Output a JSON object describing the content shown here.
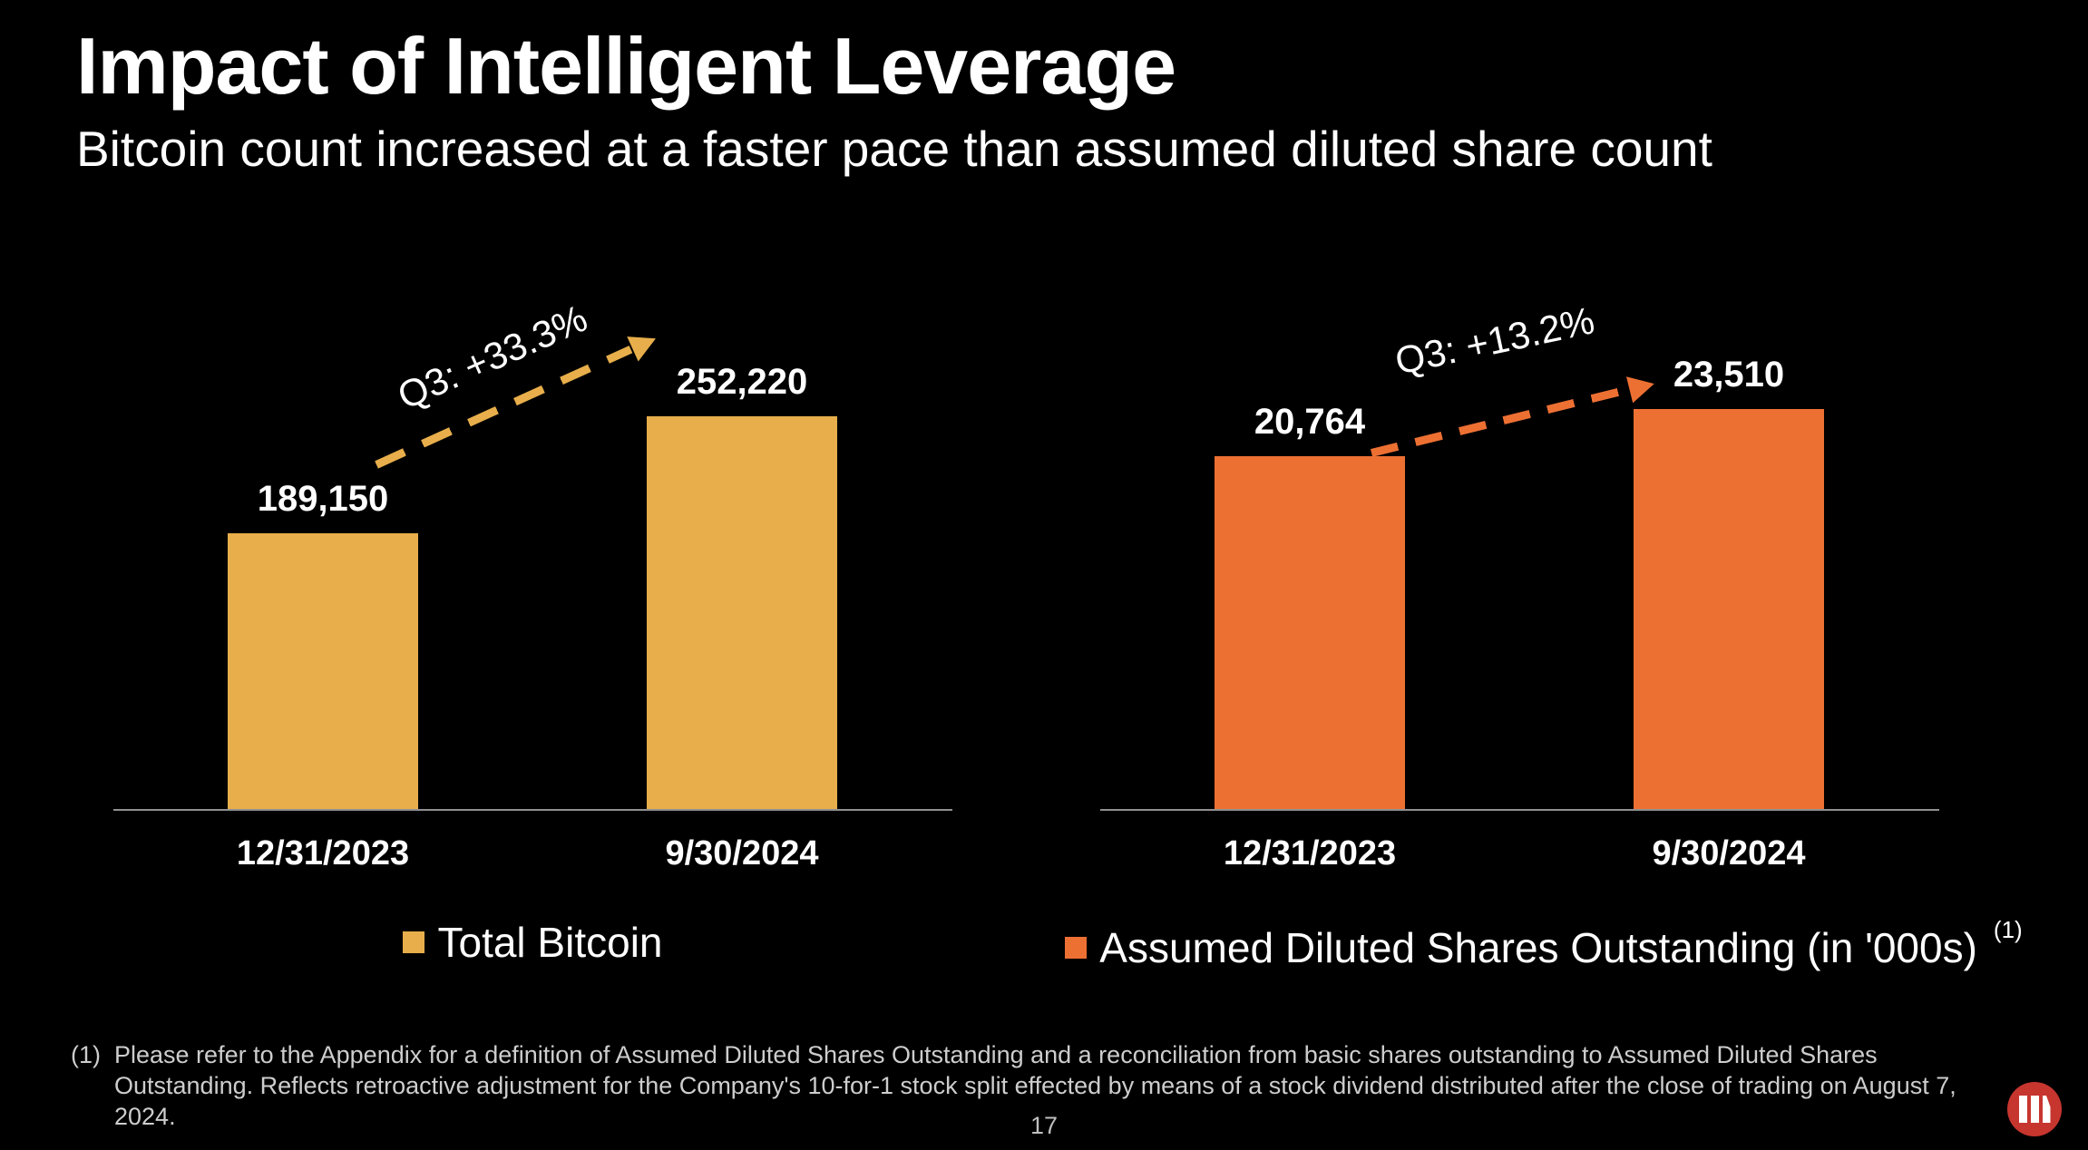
{
  "slide": {
    "title": "Impact of Intelligent Leverage",
    "subtitle": "Bitcoin count increased at a faster pace than assumed diluted share count",
    "page_number": "17"
  },
  "colors": {
    "background": "#000000",
    "bitcoin_gold": "#E7AE4B",
    "shares_orange": "#ED7033",
    "axis_gray": "#909090",
    "footnote_gray": "#CDCDCD",
    "page_number_gray": "#BFBFBF",
    "logo_red": "#C7352F",
    "text_white": "#FFFFFF"
  },
  "chart_data": [
    {
      "type": "bar",
      "title": "Total Bitcoin",
      "categories": [
        "12/31/2023",
        "9/30/2024"
      ],
      "values": [
        189150,
        252220
      ],
      "value_labels": [
        "189,150",
        "252,220"
      ],
      "annotation": "Q3: +33.3%",
      "bar_color": "#E7AE4B",
      "ylim": [
        40000,
        260000
      ],
      "grid": false,
      "legend_position": "bottom",
      "legend": {
        "label": "Total Bitcoin",
        "superscript": "",
        "color": "#E7AE4B"
      }
    },
    {
      "type": "bar",
      "title": "Assumed Diluted Shares Outstanding (in '000s)",
      "categories": [
        "12/31/2023",
        "9/30/2024"
      ],
      "values": [
        20764,
        23510
      ],
      "value_labels": [
        "20,764",
        "23,510"
      ],
      "annotation": "Q3: +13.2%",
      "bar_color": "#ED7033",
      "ylim": [
        0,
        24000
      ],
      "grid": false,
      "legend_position": "bottom",
      "legend": {
        "label": "Assumed Diluted Shares Outstanding (in '000s)",
        "superscript": "(1)",
        "color": "#ED7033"
      }
    }
  ],
  "footnote": {
    "marker": "(1)",
    "text": "Please refer to the Appendix for a definition of Assumed Diluted Shares Outstanding and a reconciliation from basic shares outstanding to Assumed Diluted Shares Outstanding. Reflects retroactive adjustment for the Company's 10-for-1 stock split effected by means of a stock dividend distributed after the close of trading on August 7, 2024."
  }
}
